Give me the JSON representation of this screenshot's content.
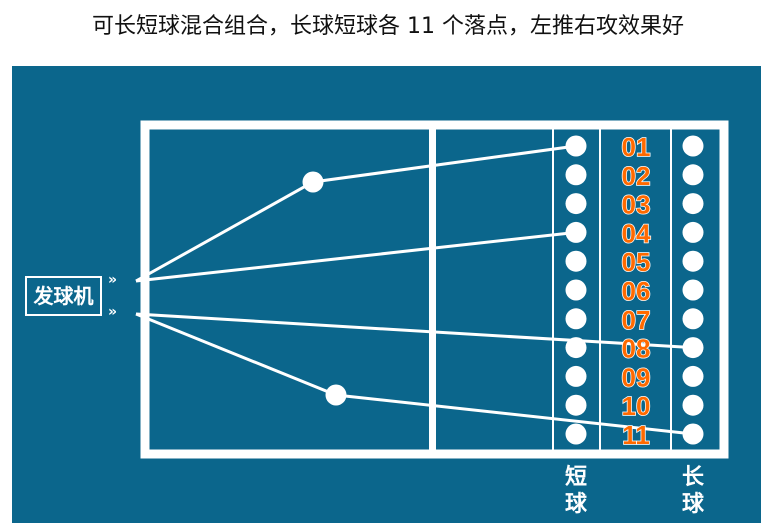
{
  "title": "可长短球混合组合，长球短球各 11 个落点，左推右攻效果好",
  "machine_label": "发球机",
  "short_label": "短球",
  "long_label": "长球",
  "chevron": "»",
  "numbers": [
    "01",
    "02",
    "03",
    "04",
    "05",
    "06",
    "07",
    "08",
    "09",
    "10",
    "11"
  ],
  "colors": {
    "background": "#0b668c",
    "number": "#ff6a00",
    "line": "#ffffff"
  },
  "trajectories": [
    {
      "from": "upper",
      "via_mid_ball": true,
      "to": "short-01"
    },
    {
      "from": "upper",
      "via_mid_ball": false,
      "to": "short-04"
    },
    {
      "from": "lower",
      "via_mid_ball": false,
      "to": "long-08"
    },
    {
      "from": "lower",
      "via_mid_ball": true,
      "to": "long-11"
    }
  ]
}
